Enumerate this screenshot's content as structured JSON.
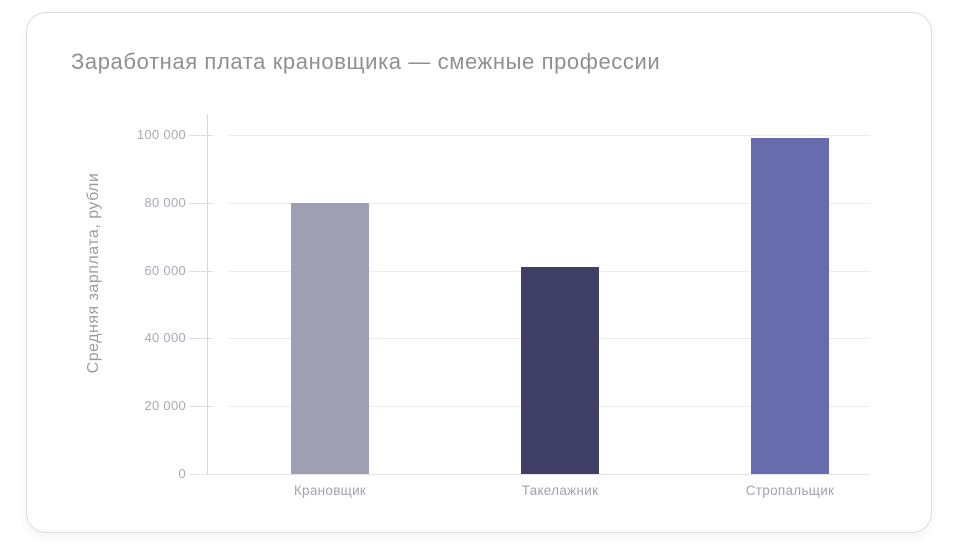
{
  "chart_data": {
    "type": "bar",
    "title": "Заработная плата крановщика — смежные профессии",
    "ylabel": "Средняя зарплата, рубли",
    "xlabel": "",
    "categories": [
      "Крановщик",
      "Такелажник",
      "Стропальщик"
    ],
    "values": [
      80000,
      61000,
      99000
    ],
    "bar_colors": [
      "#9e9fb2",
      "#403f66",
      "#676dac"
    ],
    "ylim": [
      0,
      100000
    ],
    "ytick_values": [
      0,
      20000,
      40000,
      60000,
      80000,
      100000
    ],
    "ytick_labels": [
      "0",
      "20 000",
      "40 000",
      "60 000",
      "80 000",
      "100 000"
    ],
    "grid": "horizontal",
    "legend": "none"
  }
}
